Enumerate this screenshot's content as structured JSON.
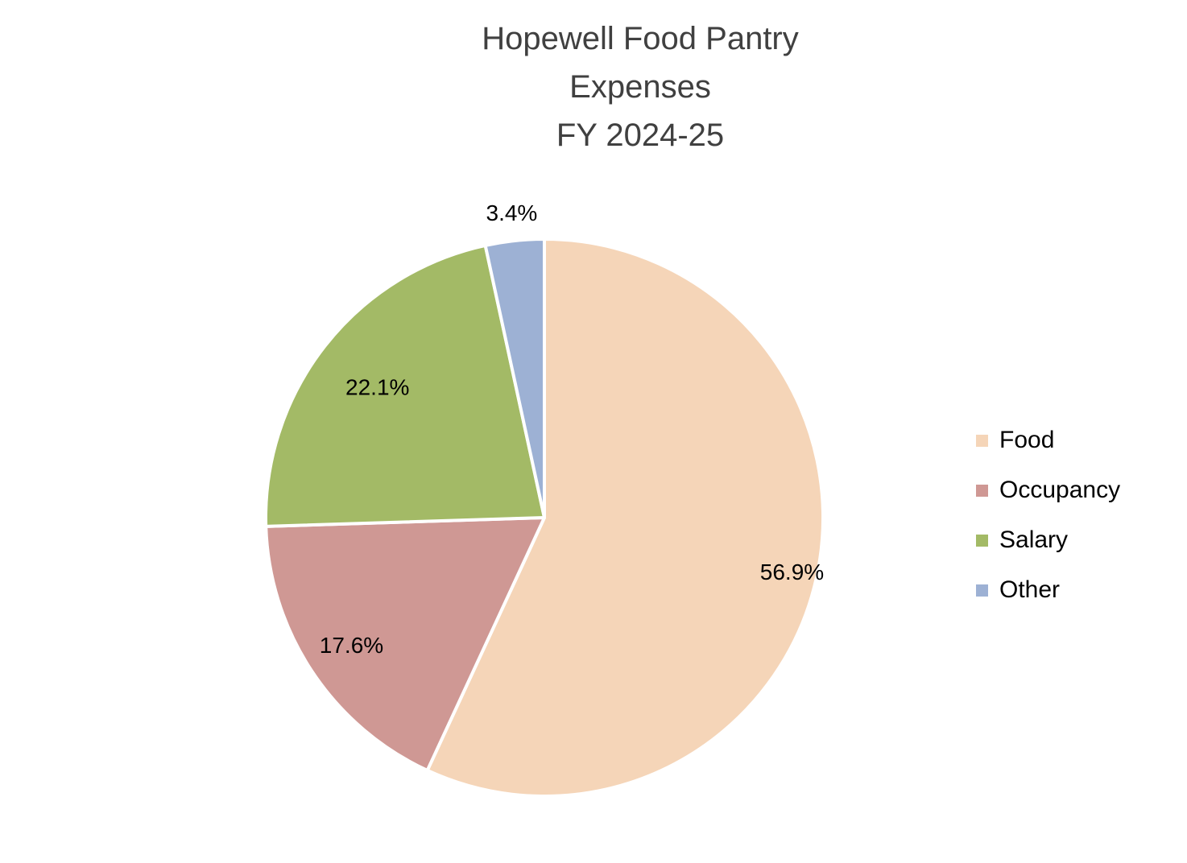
{
  "chart_data": {
    "type": "pie",
    "title_lines": [
      "Hopewell Food Pantry",
      "Expenses",
      "FY 2024-25"
    ],
    "slices": [
      {
        "name": "Food",
        "value": 56.9,
        "label": "56.9%",
        "color": "#F5D5B8"
      },
      {
        "name": "Occupancy",
        "value": 17.6,
        "label": "17.6%",
        "color": "#CF9894"
      },
      {
        "name": "Salary",
        "value": 22.1,
        "label": "22.1%",
        "color": "#A3BA66"
      },
      {
        "name": "Other",
        "value": 3.4,
        "label": "3.4%",
        "color": "#9DB1D4"
      }
    ],
    "start_angle_deg": 0,
    "direction": "clockwise",
    "legend_position": "right"
  }
}
